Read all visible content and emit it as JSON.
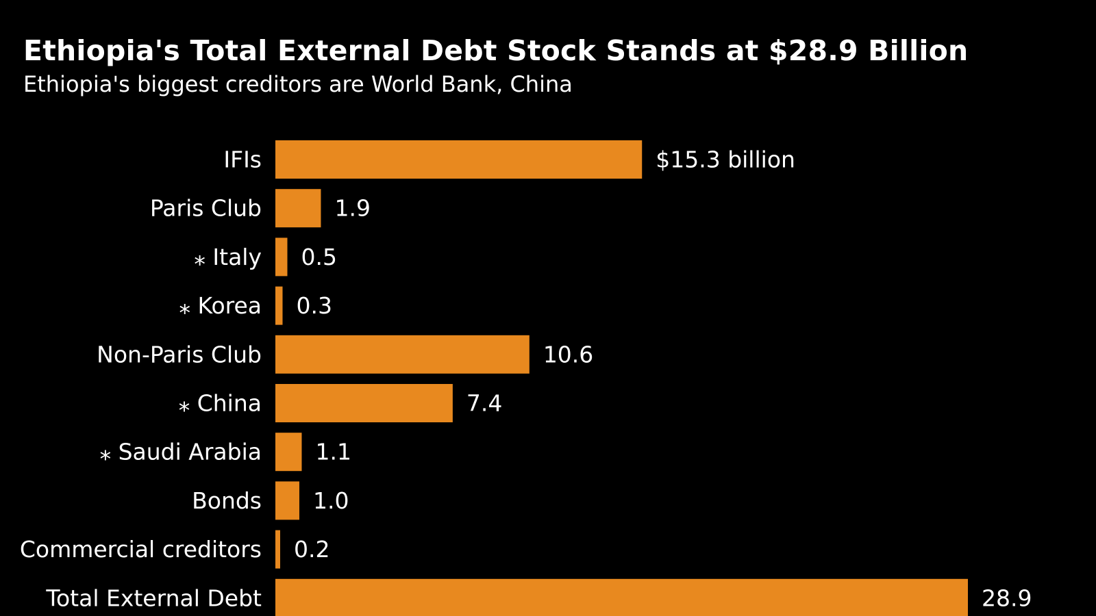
{
  "chart_data": {
    "type": "bar",
    "orientation": "horizontal",
    "title": "Ethiopia's Total External Debt Stock Stands at $28.9 Billion",
    "subtitle": "Ethiopia's biggest creditors are World Bank, China",
    "categories": [
      "IFIs",
      "Paris Club",
      "⁎ Italy",
      "⁎ Korea",
      "Non-Paris Club",
      "⁎ China",
      "⁎ Saudi Arabia",
      "Bonds",
      "Commercial creditors",
      "Total External Debt"
    ],
    "values": [
      15.3,
      1.9,
      0.5,
      0.3,
      10.6,
      7.4,
      1.1,
      1.0,
      0.2,
      28.9
    ],
    "value_labels": [
      "$15.3 billion",
      "1.9",
      "0.5",
      "0.3",
      "10.6",
      "7.4",
      "1.1",
      "1.0",
      "0.2",
      "28.9"
    ],
    "bar_color": "#E8891F",
    "background_color": "#000000",
    "text_color": "#FFFFFF",
    "xlim": [
      0,
      28.9
    ],
    "grid": false,
    "legend": "none"
  }
}
